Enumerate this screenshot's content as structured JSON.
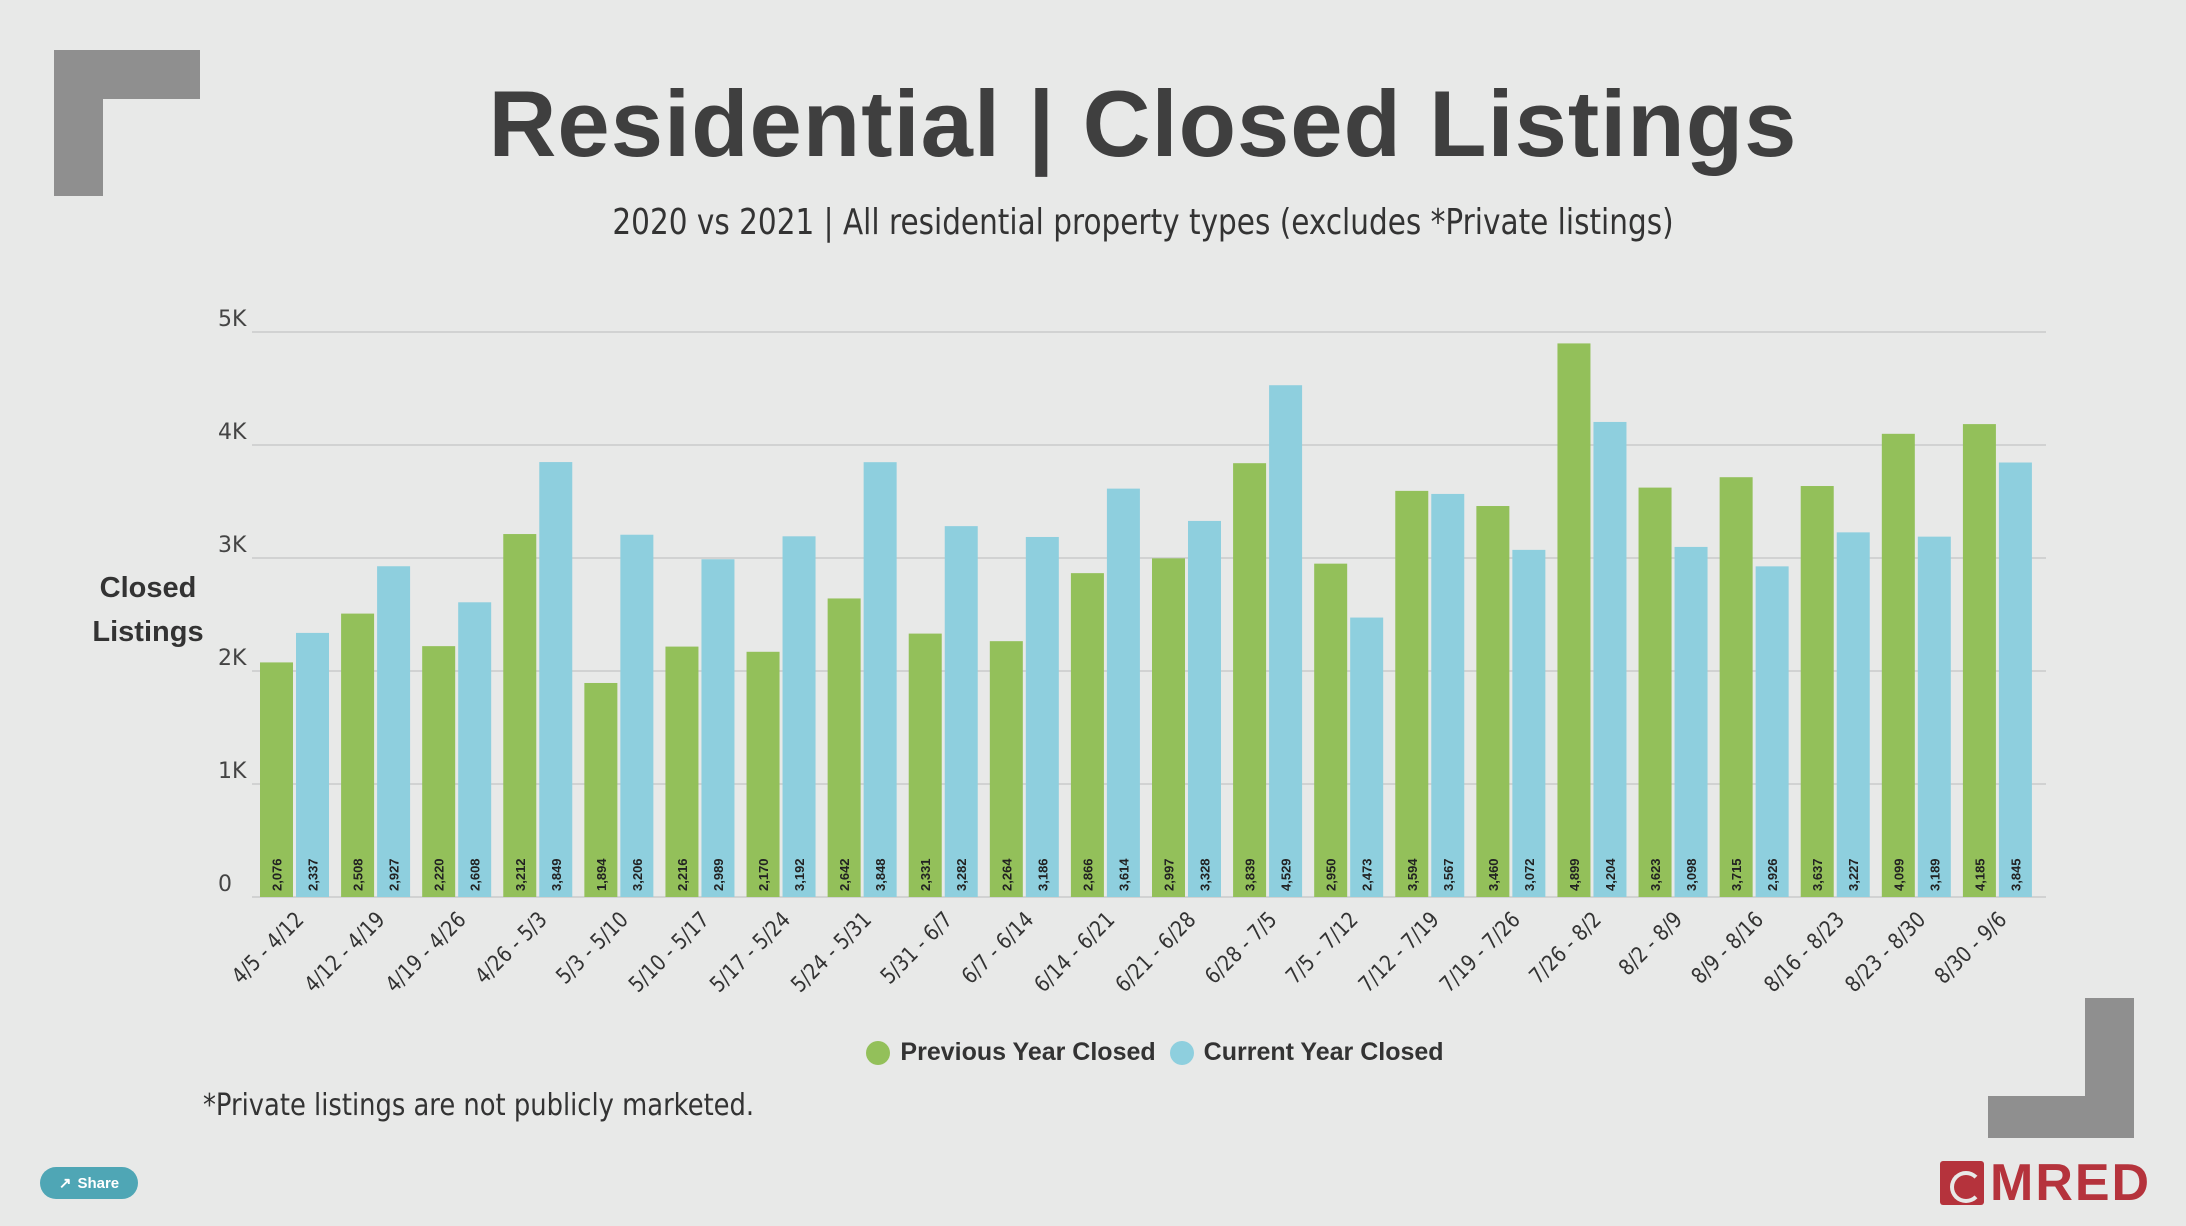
{
  "title": "Residential | Closed Listings",
  "subtitle": "2020 vs 2021 | All residential property types (excludes *Private listings)",
  "footnote": "*Private listings are not publicly marketed.",
  "share_label": "Share",
  "logo_text": "MRED",
  "colors": {
    "previous": "#93c05a",
    "current": "#8ecfde",
    "grid": "#c9cbca",
    "text": "#333333",
    "brand": "#b5333c"
  },
  "chart_data": {
    "type": "bar",
    "ylabel": "Closed Listings",
    "ylim": [
      0,
      5000
    ],
    "yticks": [
      0,
      1000,
      2000,
      3000,
      4000,
      5000
    ],
    "ytick_labels": [
      "0",
      "1K",
      "2K",
      "3K",
      "4K",
      "5K"
    ],
    "grid": true,
    "legend_position": "bottom",
    "categories": [
      "4/5 - 4/12",
      "4/12 - 4/19",
      "4/19 - 4/26",
      "4/26 - 5/3",
      "5/3 - 5/10",
      "5/10 - 5/17",
      "5/17 - 5/24",
      "5/24 - 5/31",
      "5/31 - 6/7",
      "6/7 - 6/14",
      "6/14 - 6/21",
      "6/21 - 6/28",
      "6/28 - 7/5",
      "7/5 - 7/12",
      "7/12 - 7/19",
      "7/19 - 7/26",
      "7/26 - 8/2",
      "8/2 - 8/9",
      "8/9 - 8/16",
      "8/16 - 8/23",
      "8/23 - 8/30",
      "8/30 - 9/6"
    ],
    "series": [
      {
        "name": "Previous Year Closed",
        "values": [
          2076,
          2508,
          2220,
          3212,
          1894,
          2216,
          2170,
          2642,
          2331,
          2264,
          2866,
          2997,
          3839,
          2950,
          3594,
          3460,
          4899,
          3623,
          3715,
          3637,
          4099,
          4185
        ]
      },
      {
        "name": "Current Year Closed",
        "values": [
          2337,
          2927,
          2608,
          3849,
          3206,
          2989,
          3192,
          3848,
          3282,
          3186,
          3614,
          3328,
          4529,
          2473,
          3567,
          3072,
          4204,
          3098,
          2926,
          3227,
          3189,
          3845
        ]
      }
    ]
  }
}
